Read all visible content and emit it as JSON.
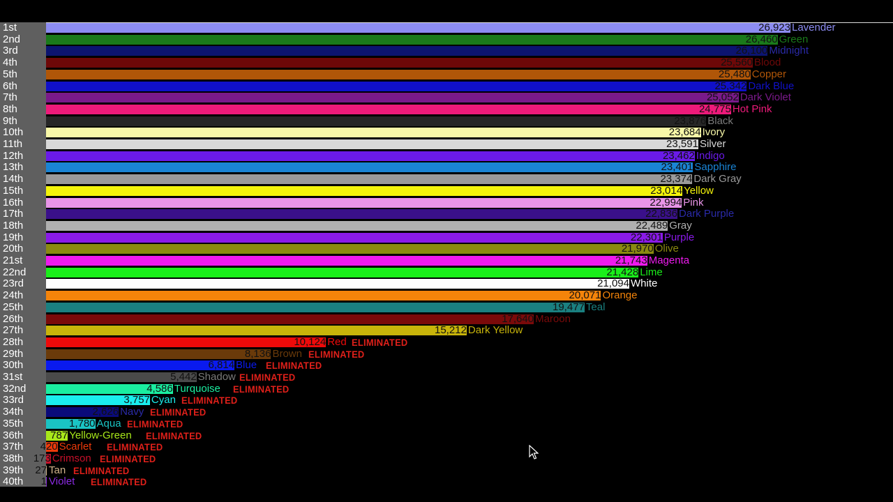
{
  "chart_data": {
    "type": "bar",
    "orientation": "horizontal",
    "title": "",
    "xlabel": "",
    "ylabel": "",
    "xlim": [
      0,
      27500
    ],
    "grid": false,
    "legend": "none",
    "eliminated_label": "ELIMINATED",
    "rows": [
      {
        "rank": "1st",
        "name": "Lavender",
        "value": 26923,
        "value_label": "26,923",
        "color": "#8c8cf2",
        "eliminated": false
      },
      {
        "rank": "2nd",
        "name": "Green",
        "value": 26460,
        "value_label": "26,460",
        "color": "#1a7a1a",
        "eliminated": false
      },
      {
        "rank": "3rd",
        "name": "Midnight",
        "value": 26100,
        "value_label": "26,100",
        "color": "#0c1470",
        "eliminated": false
      },
      {
        "rank": "4th",
        "name": "Blood",
        "value": 25560,
        "value_label": "25,560",
        "color": "#6e0808",
        "eliminated": false
      },
      {
        "rank": "5th",
        "name": "Copper",
        "value": 25480,
        "value_label": "25,480",
        "color": "#b05608",
        "eliminated": false
      },
      {
        "rank": "6th",
        "name": "Dark Blue",
        "value": 25342,
        "value_label": "25,342",
        "color": "#1010c8",
        "eliminated": false
      },
      {
        "rank": "7th",
        "name": "Dark Violet",
        "value": 25052,
        "value_label": "25,052",
        "color": "#7a1a8a",
        "eliminated": false
      },
      {
        "rank": "8th",
        "name": "Hot Pink",
        "value": 24775,
        "value_label": "24,775",
        "color": "#ee1a7a",
        "eliminated": false
      },
      {
        "rank": "9th",
        "name": "Black",
        "value": 23876,
        "value_label": "23,876",
        "color": "#262626",
        "eliminated": false
      },
      {
        "rank": "10th",
        "name": "Ivory",
        "value": 23684,
        "value_label": "23,684",
        "color": "#f8f8a8",
        "eliminated": false
      },
      {
        "rank": "11th",
        "name": "Silver",
        "value": 23591,
        "value_label": "23,591",
        "color": "#d8d8d8",
        "eliminated": false
      },
      {
        "rank": "12th",
        "name": "Indigo",
        "value": 23462,
        "value_label": "23,462",
        "color": "#6a1ae8",
        "eliminated": false
      },
      {
        "rank": "13th",
        "name": "Sapphire",
        "value": 23401,
        "value_label": "23,401",
        "color": "#1a84d4",
        "eliminated": false
      },
      {
        "rank": "14th",
        "name": "Dark Gray",
        "value": 23374,
        "value_label": "23,374",
        "color": "#9a9a9a",
        "eliminated": false
      },
      {
        "rank": "15th",
        "name": "Yellow",
        "value": 23014,
        "value_label": "23,014",
        "color": "#f4f40a",
        "eliminated": false
      },
      {
        "rank": "16th",
        "name": "Pink",
        "value": 22994,
        "value_label": "22,994",
        "color": "#e894e8",
        "eliminated": false
      },
      {
        "rank": "17th",
        "name": "Dark Purple",
        "value": 22836,
        "value_label": "22,836",
        "color": "#3a108a",
        "eliminated": false
      },
      {
        "rank": "18th",
        "name": "Gray",
        "value": 22489,
        "value_label": "22,489",
        "color": "#b0b0b0",
        "eliminated": false
      },
      {
        "rank": "19th",
        "name": "Purple",
        "value": 22301,
        "value_label": "22,301",
        "color": "#8a1ae8",
        "eliminated": false
      },
      {
        "rank": "20th",
        "name": "Olive",
        "value": 21970,
        "value_label": "21,970",
        "color": "#8a8a10",
        "eliminated": false
      },
      {
        "rank": "21st",
        "name": "Magenta",
        "value": 21743,
        "value_label": "21,743",
        "color": "#ee1aee",
        "eliminated": false
      },
      {
        "rank": "22nd",
        "name": "Lime",
        "value": 21428,
        "value_label": "21,428",
        "color": "#1aee1a",
        "eliminated": false
      },
      {
        "rank": "23rd",
        "name": "White",
        "value": 21094,
        "value_label": "21,094",
        "color": "#ffffff",
        "eliminated": false
      },
      {
        "rank": "24th",
        "name": "Orange",
        "value": 20071,
        "value_label": "20,071",
        "color": "#f4840a",
        "eliminated": false
      },
      {
        "rank": "25th",
        "name": "Teal",
        "value": 19477,
        "value_label": "19,477",
        "color": "#1a8080",
        "eliminated": false
      },
      {
        "rank": "26th",
        "name": "Maroon",
        "value": 17640,
        "value_label": "17,640",
        "color": "#7a0a0a",
        "eliminated": false
      },
      {
        "rank": "27th",
        "name": "Dark Yellow",
        "value": 15212,
        "value_label": "15,212",
        "color": "#c8b40a",
        "eliminated": false
      },
      {
        "rank": "28th",
        "name": "Red",
        "value": 10124,
        "value_label": "10,124",
        "color": "#ee0a0a",
        "eliminated": true
      },
      {
        "rank": "29th",
        "name": "Brown",
        "value": 8136,
        "value_label": "8,136",
        "color": "#6a3a0a",
        "eliminated": true
      },
      {
        "rank": "30th",
        "name": "Blue",
        "value": 6814,
        "value_label": "6,814",
        "color": "#0a1aee",
        "eliminated": true
      },
      {
        "rank": "31st",
        "name": "Shadow",
        "value": 5442,
        "value_label": "5,442",
        "color": "#4a4a4a",
        "eliminated": true
      },
      {
        "rank": "32nd",
        "name": "Turquoise",
        "value": 4586,
        "value_label": "4,586",
        "color": "#1aeea0",
        "eliminated": true
      },
      {
        "rank": "33rd",
        "name": "Cyan",
        "value": 3757,
        "value_label": "3,757",
        "color": "#1aeeee",
        "eliminated": true
      },
      {
        "rank": "34th",
        "name": "Navy",
        "value": 2626,
        "value_label": "2,626",
        "color": "#0a0a7a",
        "eliminated": true
      },
      {
        "rank": "35th",
        "name": "Aqua",
        "value": 1780,
        "value_label": "1,780",
        "color": "#1ac4c4",
        "eliminated": true
      },
      {
        "rank": "36th",
        "name": "Yellow-Green",
        "value": 787,
        "value_label": "787",
        "color": "#a8e81a",
        "eliminated": true
      },
      {
        "rank": "37th",
        "name": "Scarlet",
        "value": 420,
        "value_label": "420",
        "color": "#ee3a0a",
        "eliminated": true
      },
      {
        "rank": "38th",
        "name": "Crimson",
        "value": 173,
        "value_label": "173",
        "color": "#c8102a",
        "eliminated": true
      },
      {
        "rank": "39th",
        "name": "Tan",
        "value": 27,
        "value_label": "27",
        "color": "#d2b48c",
        "eliminated": true
      },
      {
        "rank": "40th",
        "name": "Violet",
        "value": 1,
        "value_label": "1",
        "color": "#8a2ae2",
        "eliminated": true
      }
    ]
  }
}
